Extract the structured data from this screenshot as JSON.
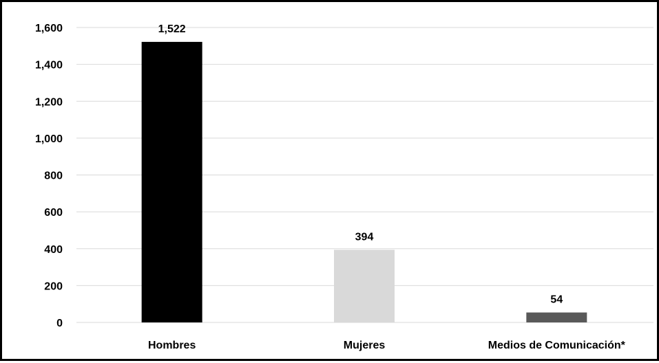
{
  "chart_data": {
    "type": "bar",
    "title": "",
    "xlabel": "",
    "ylabel": "",
    "categories": [
      "Hombres",
      "Mujeres",
      "Medios de Comunicación*"
    ],
    "values": [
      1522,
      394,
      54
    ],
    "value_labels": [
      "1,522",
      "394",
      "54"
    ],
    "bar_colors": [
      "#000000",
      "#d9d9d9",
      "#595959"
    ],
    "ylim": [
      0,
      1600
    ],
    "yticks": [
      0,
      200,
      400,
      600,
      800,
      1000,
      1200,
      1400,
      1600
    ],
    "ytick_labels": [
      "0",
      "200",
      "400",
      "600",
      "800",
      "1,000",
      "1,200",
      "1,400",
      "1,600"
    ],
    "grid": true,
    "legend": "none"
  }
}
